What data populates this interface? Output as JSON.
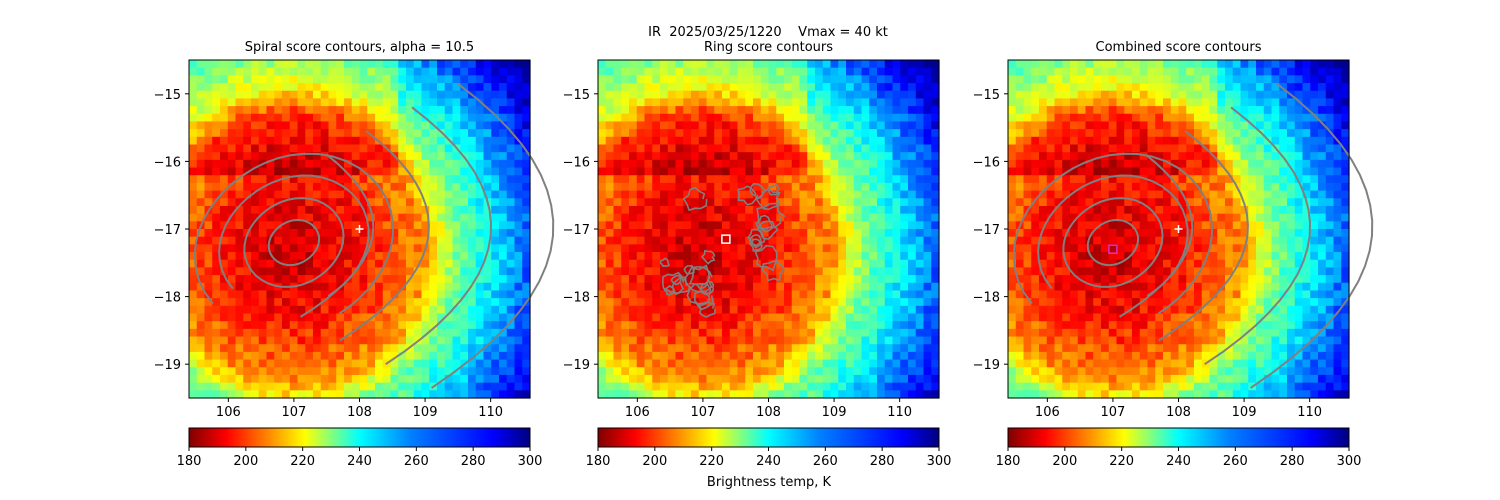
{
  "suptitle": "IR  2025/03/25/1220    Vmax = 40 kt",
  "colorbar_label": "Brightness temp, K",
  "chart_data": [
    {
      "type": "heatmap",
      "title": "Spiral score contours, alpha = 10.5",
      "xlim": [
        105.4,
        110.6
      ],
      "ylim": [
        -19.5,
        -14.5
      ],
      "xticks": [
        "106",
        "107",
        "108",
        "109",
        "110"
      ],
      "yticks": [
        "−15",
        "−16",
        "−17",
        "−18",
        "−19"
      ],
      "center_marker": {
        "lon": 108.0,
        "lat": -17.0,
        "symbol": "+",
        "color": "#ffffff"
      },
      "contour_color": "#808080",
      "contour_shape": "spiral",
      "colorbar": {
        "vmin": 180,
        "vmax": 300,
        "cmap": "jet_r",
        "ticks": [
          "180",
          "200",
          "220",
          "240",
          "260",
          "280",
          "300"
        ]
      }
    },
    {
      "type": "heatmap",
      "title": "Ring score contours",
      "xlim": [
        105.4,
        110.6
      ],
      "ylim": [
        -19.5,
        -14.5
      ],
      "xticks": [
        "106",
        "107",
        "108",
        "109",
        "110"
      ],
      "yticks": [
        "−15",
        "−16",
        "−17",
        "−18",
        "−19"
      ],
      "center_marker": {
        "lon": 107.35,
        "lat": -17.15,
        "symbol": "square",
        "color": "#ffffff"
      },
      "contour_color": "#808080",
      "contour_shape": "ring",
      "colorbar": {
        "vmin": 180,
        "vmax": 300,
        "cmap": "jet_r",
        "ticks": [
          "180",
          "200",
          "220",
          "240",
          "260",
          "280",
          "300"
        ]
      }
    },
    {
      "type": "heatmap",
      "title": "Combined score contours",
      "xlim": [
        105.4,
        110.6
      ],
      "ylim": [
        -19.5,
        -14.5
      ],
      "xticks": [
        "106",
        "107",
        "108",
        "109",
        "110"
      ],
      "yticks": [
        "−15",
        "−16",
        "−17",
        "−18",
        "−19"
      ],
      "center_marker": {
        "lon": 108.0,
        "lat": -17.0,
        "symbol": "+",
        "color": "#ffffff"
      },
      "best_center": {
        "lon": 107.0,
        "lat": -17.3,
        "symbol": "square",
        "color": "#cc33cc"
      },
      "contour_color": "#808080",
      "contour_shape": "spiral",
      "colorbar": {
        "vmin": 180,
        "vmax": 300,
        "cmap": "jet_r",
        "ticks": [
          "180",
          "200",
          "220",
          "240",
          "260",
          "280",
          "300"
        ]
      }
    }
  ]
}
